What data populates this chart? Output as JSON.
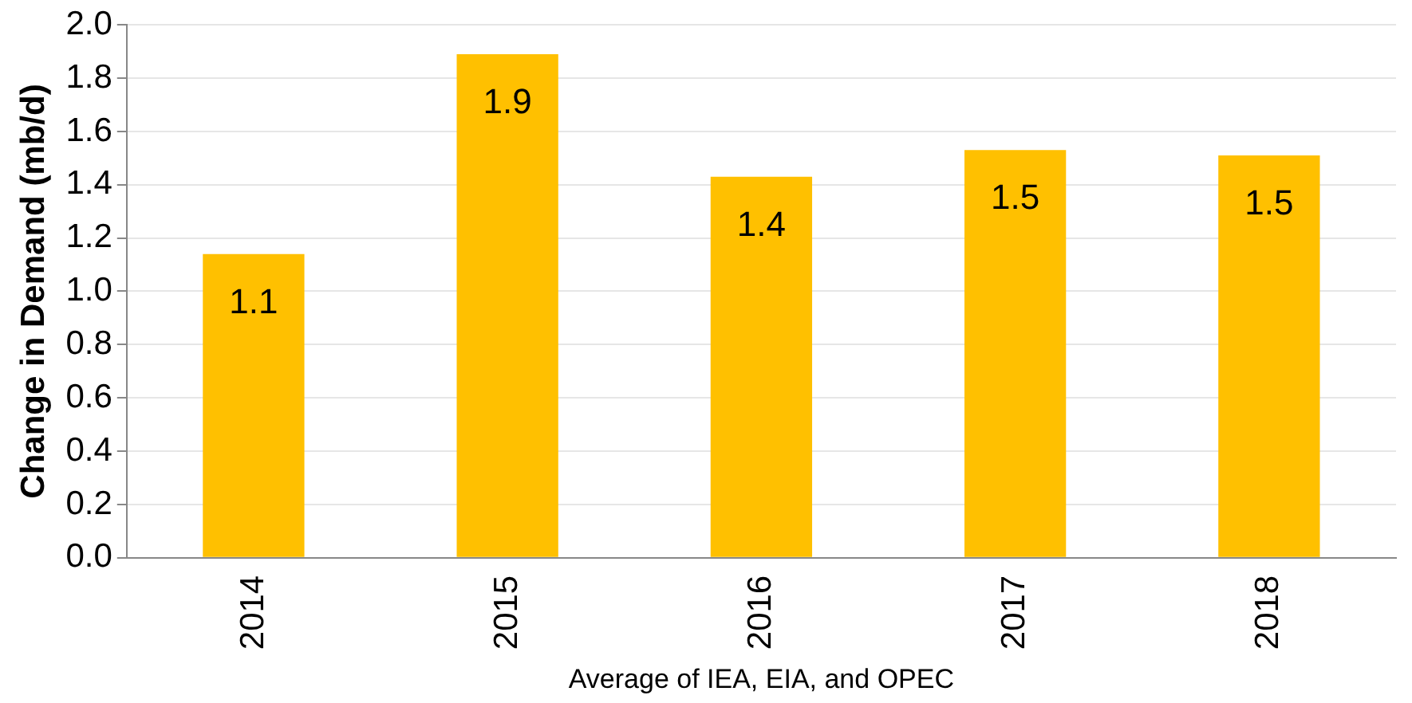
{
  "chart_data": {
    "type": "bar",
    "xlabel": "Average of IEA, EIA, and OPEC",
    "ylabel": "Change in Demand (mb/d)",
    "categories": [
      "2014",
      "2015",
      "2016",
      "2017",
      "2018"
    ],
    "values": [
      1.14,
      1.89,
      1.43,
      1.53,
      1.51
    ],
    "value_labels": [
      "1.1",
      "1.9",
      "1.4",
      "1.5",
      "1.5"
    ],
    "color": "#ffc000",
    "ylim": [
      0,
      2.0
    ],
    "yticks": [
      {
        "value": 0,
        "label": "0.0"
      },
      {
        "value": 0.2,
        "label": "0.2"
      },
      {
        "value": 0.4,
        "label": "0.4"
      },
      {
        "value": 0.6,
        "label": "0.6"
      },
      {
        "value": 0.8,
        "label": "0.8"
      },
      {
        "value": 1.0,
        "label": "1.0"
      },
      {
        "value": 1.2,
        "label": "1.2"
      },
      {
        "value": 1.4,
        "label": "1.4"
      },
      {
        "value": 1.6,
        "label": "1.6"
      },
      {
        "value": 1.8,
        "label": "1.8"
      },
      {
        "value": 2.0,
        "label": "2.0"
      }
    ],
    "grid": "y",
    "legend": false
  }
}
